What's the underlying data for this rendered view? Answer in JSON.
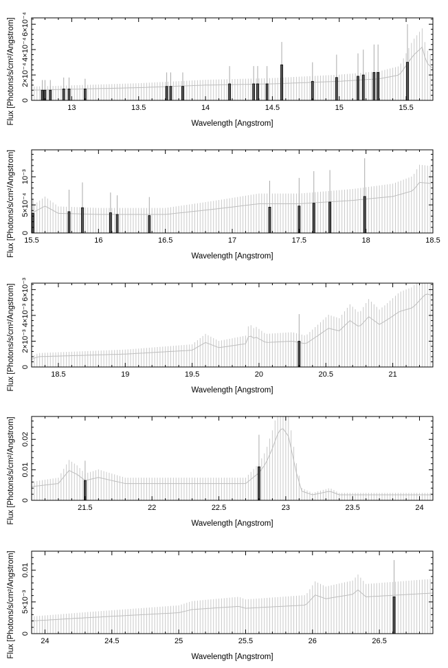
{
  "chart_data": [
    {
      "type": "bar",
      "xlabel": "Wavelength [Angstrom]",
      "ylabel": "Flux [Photons/s/cm²/Angstrom]",
      "xlim": [
        12.7,
        15.7
      ],
      "ylim": [
        0,
        0.00065
      ],
      "xticks": [
        {
          "value": 13,
          "label": "13"
        },
        {
          "value": 13.5,
          "label": "13.5"
        },
        {
          "value": 14,
          "label": "14"
        },
        {
          "value": 14.5,
          "label": "14.5"
        },
        {
          "value": 15,
          "label": "15"
        },
        {
          "value": 15.5,
          "label": "15.5"
        }
      ],
      "yticks": [
        {
          "value": 0,
          "label": "0"
        },
        {
          "value": 0.0002,
          "label": "2×10⁻⁴"
        },
        {
          "value": 0.0004,
          "label": "4×10⁻⁴"
        },
        {
          "value": 0.0006,
          "label": "6×10⁻⁴"
        }
      ],
      "continuum": [
        [
          12.7,
          8e-05
        ],
        [
          13.5,
          0.0001
        ],
        [
          14.0,
          0.00012
        ],
        [
          14.5,
          0.00013
        ],
        [
          15.0,
          0.00015
        ],
        [
          15.3,
          0.00017
        ],
        [
          15.45,
          0.0002
        ],
        [
          15.55,
          0.00035
        ],
        [
          15.62,
          0.00042
        ],
        [
          15.65,
          0.0003
        ],
        [
          15.7,
          0.00025
        ]
      ],
      "lines": [
        {
          "x": 12.78,
          "y": 8e-05,
          "err": 0.00016
        },
        {
          "x": 12.8,
          "y": 8e-05,
          "err": 0.00016
        },
        {
          "x": 12.84,
          "y": 8e-05,
          "err": 0.00016
        },
        {
          "x": 12.94,
          "y": 9e-05,
          "err": 0.00018
        },
        {
          "x": 12.98,
          "y": 9e-05,
          "err": 0.00018
        },
        {
          "x": 13.1,
          "y": 9e-05,
          "err": 0.00017
        },
        {
          "x": 13.71,
          "y": 0.00011,
          "err": 0.00022
        },
        {
          "x": 13.74,
          "y": 0.00011,
          "err": 0.00022
        },
        {
          "x": 13.83,
          "y": 0.00011,
          "err": 0.00022
        },
        {
          "x": 14.18,
          "y": 0.00013,
          "err": 0.00027
        },
        {
          "x": 14.36,
          "y": 0.00013,
          "err": 0.00027
        },
        {
          "x": 14.39,
          "y": 0.00013,
          "err": 0.00027
        },
        {
          "x": 14.46,
          "y": 0.00013,
          "err": 0.00027
        },
        {
          "x": 14.57,
          "y": 0.00028,
          "err": 0.00046
        },
        {
          "x": 14.8,
          "y": 0.00015,
          "err": 0.0003
        },
        {
          "x": 14.98,
          "y": 0.00018,
          "err": 0.00036
        },
        {
          "x": 15.14,
          "y": 0.00019,
          "err": 0.00037
        },
        {
          "x": 15.18,
          "y": 0.0002,
          "err": 0.0004
        },
        {
          "x": 15.26,
          "y": 0.00022,
          "err": 0.00044
        },
        {
          "x": 15.29,
          "y": 0.00022,
          "err": 0.00044
        },
        {
          "x": 15.51,
          "y": 0.0003,
          "err": 0.0006
        }
      ]
    },
    {
      "type": "bar",
      "xlabel": "Wavelength [Angstrom]",
      "ylabel": "Flux [Photons/s/cm²/Angstrom]",
      "xlim": [
        15.5,
        18.5
      ],
      "ylim": [
        0,
        0.00148
      ],
      "xticks": [
        {
          "value": 15.5,
          "label": "15.5"
        },
        {
          "value": 16,
          "label": "16"
        },
        {
          "value": 16.5,
          "label": "16.5"
        },
        {
          "value": 17,
          "label": "17"
        },
        {
          "value": 17.5,
          "label": "17.5"
        },
        {
          "value": 18,
          "label": "18"
        },
        {
          "value": 18.5,
          "label": "18.5"
        }
      ],
      "yticks": [
        {
          "value": 0,
          "label": "0"
        },
        {
          "value": 0.0005,
          "label": "5×10⁻⁴"
        },
        {
          "value": 0.001,
          "label": "10⁻³"
        }
      ],
      "continuum": [
        [
          15.5,
          0.00035
        ],
        [
          15.6,
          0.00048
        ],
        [
          15.7,
          0.00035
        ],
        [
          16.0,
          0.00033
        ],
        [
          16.5,
          0.00033
        ],
        [
          16.85,
          0.00042
        ],
        [
          17.2,
          0.00052
        ],
        [
          17.5,
          0.00052
        ],
        [
          17.9,
          0.00058
        ],
        [
          18.2,
          0.00065
        ],
        [
          18.35,
          0.00075
        ],
        [
          18.4,
          0.0009
        ],
        [
          18.5,
          0.00088
        ]
      ],
      "lines": [
        {
          "x": 15.51,
          "y": 0.00035,
          "err": 0.0006
        },
        {
          "x": 15.78,
          "y": 0.00038,
          "err": 0.00077
        },
        {
          "x": 15.88,
          "y": 0.00045,
          "err": 0.0009
        },
        {
          "x": 16.09,
          "y": 0.00036,
          "err": 0.00072
        },
        {
          "x": 16.14,
          "y": 0.00033,
          "err": 0.00067
        },
        {
          "x": 16.38,
          "y": 0.00031,
          "err": 0.00064
        },
        {
          "x": 17.28,
          "y": 0.00046,
          "err": 0.00093
        },
        {
          "x": 17.5,
          "y": 0.00048,
          "err": 0.00098
        },
        {
          "x": 17.61,
          "y": 0.00053,
          "err": 0.0011
        },
        {
          "x": 17.73,
          "y": 0.00055,
          "err": 0.00112
        },
        {
          "x": 17.99,
          "y": 0.00065,
          "err": 0.00133
        }
      ]
    },
    {
      "type": "bar",
      "xlabel": "Wavelength [Angstrom]",
      "ylabel": "Flux [Photons/s/cm²/Angstrom]",
      "xlim": [
        18.3,
        21.3
      ],
      "ylim": [
        0,
        0.0065
      ],
      "xticks": [
        {
          "value": 18.5,
          "label": "18.5"
        },
        {
          "value": 19,
          "label": "19"
        },
        {
          "value": 19.5,
          "label": "19.5"
        },
        {
          "value": 20,
          "label": "20"
        },
        {
          "value": 20.5,
          "label": "20.5"
        },
        {
          "value": 21,
          "label": "21"
        }
      ],
      "yticks": [
        {
          "value": 0,
          "label": "0"
        },
        {
          "value": 0.002,
          "label": "2×10⁻³"
        },
        {
          "value": 0.004,
          "label": "4×10⁻³"
        },
        {
          "value": 0.006,
          "label": "6×10⁻³"
        }
      ],
      "continuum": [
        [
          18.3,
          0.0006
        ],
        [
          18.35,
          0.0008
        ],
        [
          19.0,
          0.001
        ],
        [
          19.5,
          0.0013
        ],
        [
          19.6,
          0.0019
        ],
        [
          19.7,
          0.0015
        ],
        [
          19.9,
          0.0018
        ],
        [
          19.93,
          0.0026
        ],
        [
          19.95,
          0.0022
        ],
        [
          19.98,
          0.0023
        ],
        [
          20.05,
          0.0019
        ],
        [
          20.25,
          0.002
        ],
        [
          20.35,
          0.0018
        ],
        [
          20.45,
          0.0025
        ],
        [
          20.52,
          0.003
        ],
        [
          20.6,
          0.0028
        ],
        [
          20.68,
          0.0036
        ],
        [
          20.75,
          0.0031
        ],
        [
          20.82,
          0.0039
        ],
        [
          20.9,
          0.0033
        ],
        [
          20.95,
          0.0036
        ],
        [
          21.05,
          0.0043
        ],
        [
          21.15,
          0.0046
        ],
        [
          21.25,
          0.0057
        ],
        [
          21.3,
          0.0055
        ]
      ],
      "lines": [
        {
          "x": 20.3,
          "y": 0.002,
          "err": 0.0041
        }
      ]
    },
    {
      "type": "bar",
      "xlabel": "Wavelength [Angstrom]",
      "ylabel": "Flux [Photons/s/cm²/Angstrom]",
      "xlim": [
        21.1,
        24.1
      ],
      "ylim": [
        0,
        0.0275
      ],
      "xticks": [
        {
          "value": 21.5,
          "label": "21.5"
        },
        {
          "value": 22,
          "label": "22"
        },
        {
          "value": 22.5,
          "label": "22.5"
        },
        {
          "value": 23,
          "label": "23"
        },
        {
          "value": 23.5,
          "label": "23.5"
        },
        {
          "value": 24,
          "label": "24"
        }
      ],
      "yticks": [
        {
          "value": 0,
          "label": "0"
        },
        {
          "value": 0.01,
          "label": "0.01"
        },
        {
          "value": 0.02,
          "label": "0.02"
        }
      ],
      "continuum": [
        [
          21.1,
          0.0045
        ],
        [
          21.3,
          0.0055
        ],
        [
          21.38,
          0.0098
        ],
        [
          21.44,
          0.0085
        ],
        [
          21.5,
          0.0065
        ],
        [
          21.6,
          0.0075
        ],
        [
          21.8,
          0.0055
        ],
        [
          22.0,
          0.0055
        ],
        [
          22.7,
          0.0055
        ],
        [
          22.8,
          0.009
        ],
        [
          22.85,
          0.012
        ],
        [
          22.9,
          0.017
        ],
        [
          22.95,
          0.023
        ],
        [
          22.98,
          0.0235
        ],
        [
          23.02,
          0.021
        ],
        [
          23.05,
          0.015
        ],
        [
          23.08,
          0.009
        ],
        [
          23.12,
          0.003
        ],
        [
          23.2,
          0.0018
        ],
        [
          23.33,
          0.003
        ],
        [
          23.4,
          0.0018
        ],
        [
          24.1,
          0.0018
        ]
      ],
      "lines": [
        {
          "x": 21.5,
          "y": 0.0065,
          "err": 0.013
        },
        {
          "x": 22.8,
          "y": 0.011,
          "err": 0.0215
        }
      ]
    },
    {
      "type": "bar",
      "xlabel": "Wavelength [Angstrom]",
      "ylabel": "Flux [Photons/s/cm²/Angstrom]",
      "xlim": [
        23.9,
        26.9
      ],
      "ylim": [
        0,
        0.013
      ],
      "xticks": [
        {
          "value": 24,
          "label": "24"
        },
        {
          "value": 24.5,
          "label": "24.5"
        },
        {
          "value": 25,
          "label": "25"
        },
        {
          "value": 25.5,
          "label": "25.5"
        },
        {
          "value": 26,
          "label": "26"
        },
        {
          "value": 26.5,
          "label": "26.5"
        }
      ],
      "yticks": [
        {
          "value": 0,
          "label": "0"
        },
        {
          "value": 0.005,
          "label": "5×10⁻³"
        },
        {
          "value": 0.01,
          "label": "0.01"
        }
      ],
      "continuum": [
        [
          23.9,
          0.002
        ],
        [
          24.3,
          0.0025
        ],
        [
          25.0,
          0.0033
        ],
        [
          25.1,
          0.0038
        ],
        [
          25.45,
          0.0043
        ],
        [
          25.5,
          0.004
        ],
        [
          25.95,
          0.0045
        ],
        [
          26.02,
          0.0061
        ],
        [
          26.1,
          0.0055
        ],
        [
          26.3,
          0.0062
        ],
        [
          26.34,
          0.0069
        ],
        [
          26.4,
          0.0058
        ],
        [
          26.9,
          0.0064
        ]
      ],
      "lines": [
        {
          "x": 26.61,
          "y": 0.0058,
          "err": 0.0116
        }
      ]
    }
  ]
}
